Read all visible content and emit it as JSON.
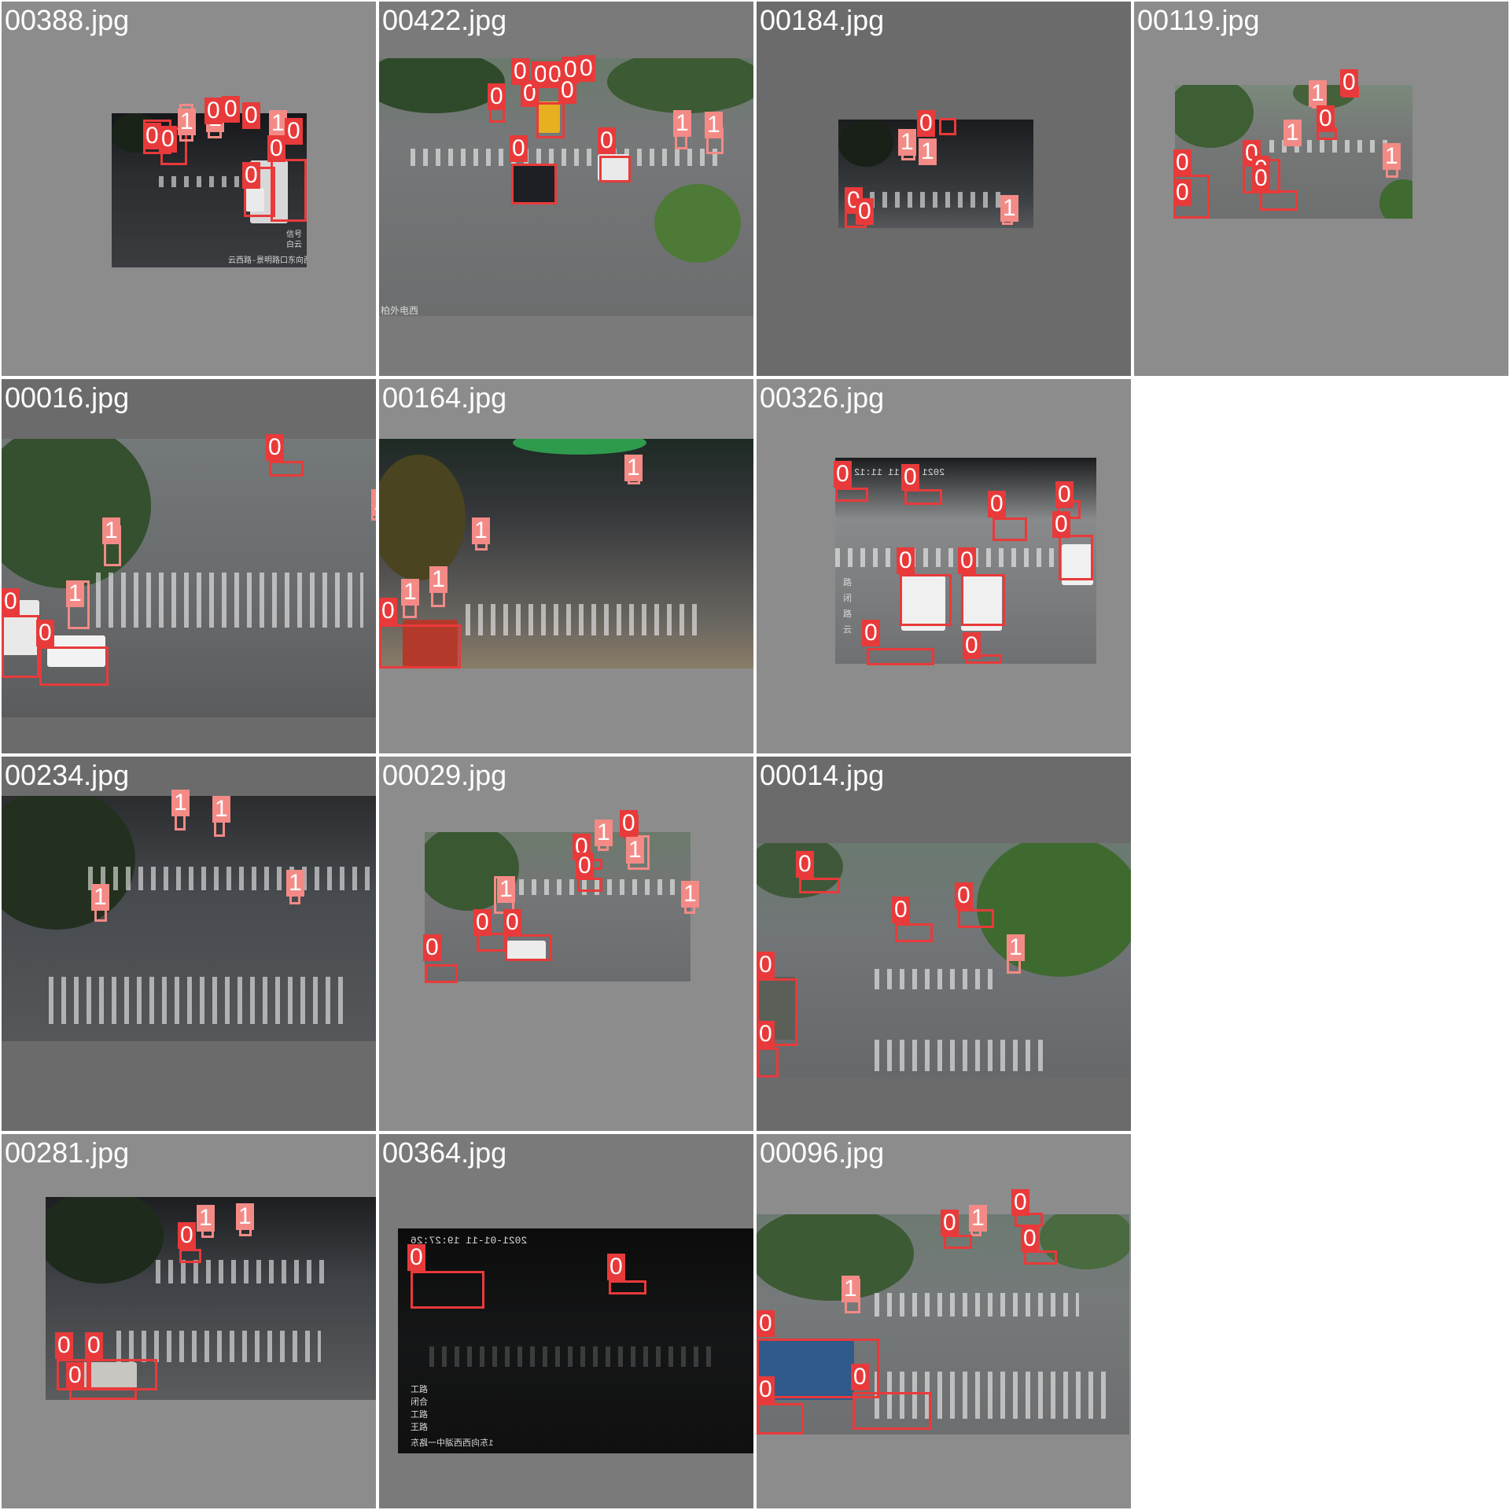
{
  "tiles": [
    {
      "filename": "00388.jpg",
      "tile_bg": "#8c8c8c",
      "scene": "night",
      "detections": [
        {
          "cls": "0"
        },
        {
          "cls": "0"
        },
        {
          "cls": "1"
        },
        {
          "cls": "1"
        },
        {
          "cls": "0"
        },
        {
          "cls": "0"
        },
        {
          "cls": "0"
        },
        {
          "cls": "1"
        },
        {
          "cls": "0"
        },
        {
          "cls": "0"
        },
        {
          "cls": "0"
        }
      ],
      "osd_bottom": "云西路-景明路口东向西3",
      "osd_side": [
        "信号",
        "白云"
      ]
    },
    {
      "filename": "00422.jpg",
      "tile_bg": "#7a7a7a",
      "scene": "day",
      "detections": [
        {
          "cls": "0"
        },
        {
          "cls": "0"
        },
        {
          "cls": "0"
        },
        {
          "cls": "0"
        },
        {
          "cls": "0"
        },
        {
          "cls": "0"
        },
        {
          "cls": "0"
        },
        {
          "cls": "0"
        },
        {
          "cls": "0"
        },
        {
          "cls": "1"
        },
        {
          "cls": "0"
        },
        {
          "cls": "1"
        }
      ],
      "osd_bottom": "柏外电西"
    },
    {
      "filename": "00184.jpg",
      "tile_bg": "#6b6b6b",
      "scene": "night",
      "detections": [
        {
          "cls": "0"
        },
        {
          "cls": "1"
        },
        {
          "cls": "1"
        },
        {
          "cls": "0"
        },
        {
          "cls": "0"
        },
        {
          "cls": "1"
        }
      ]
    },
    {
      "filename": "00119.jpg",
      "tile_bg": "#8c8c8c",
      "scene": "day",
      "detections": [
        {
          "cls": "1"
        },
        {
          "cls": "0"
        },
        {
          "cls": "0"
        },
        {
          "cls": "1"
        },
        {
          "cls": "0"
        },
        {
          "cls": "0"
        },
        {
          "cls": "0"
        },
        {
          "cls": "0"
        },
        {
          "cls": "0"
        },
        {
          "cls": "1"
        }
      ]
    },
    {
      "filename": "00016.jpg",
      "tile_bg": "#6b6b6b",
      "scene": "day",
      "detections": [
        {
          "cls": "0"
        },
        {
          "cls": "1"
        },
        {
          "cls": "1"
        },
        {
          "cls": "1"
        },
        {
          "cls": "0"
        },
        {
          "cls": "0"
        }
      ]
    },
    {
      "filename": "00164.jpg",
      "tile_bg": "#8c8c8c",
      "scene": "night",
      "detections": [
        {
          "cls": "1"
        },
        {
          "cls": "1"
        },
        {
          "cls": "1"
        },
        {
          "cls": "1"
        },
        {
          "cls": "0"
        }
      ]
    },
    {
      "filename": "00326.jpg",
      "tile_bg": "#8c8c8c",
      "scene": "day",
      "detections": [
        {
          "cls": "0"
        },
        {
          "cls": "0"
        },
        {
          "cls": "0"
        },
        {
          "cls": "0"
        },
        {
          "cls": "0"
        },
        {
          "cls": "0"
        },
        {
          "cls": "0"
        },
        {
          "cls": "0"
        },
        {
          "cls": "0"
        }
      ],
      "osd_top": "2021 08 11 11:12",
      "osd_side": [
        "路",
        "闭",
        "路",
        "云"
      ]
    },
    {
      "filename": "00234.jpg",
      "tile_bg": "#6b6b6b",
      "scene": "night",
      "detections": [
        {
          "cls": "1"
        },
        {
          "cls": "1"
        },
        {
          "cls": "1"
        },
        {
          "cls": "1"
        }
      ]
    },
    {
      "filename": "00029.jpg",
      "tile_bg": "#8c8c8c",
      "scene": "day",
      "detections": [
        {
          "cls": "0"
        },
        {
          "cls": "1"
        },
        {
          "cls": "0"
        },
        {
          "cls": "1"
        },
        {
          "cls": "0"
        },
        {
          "cls": "1"
        },
        {
          "cls": "1"
        },
        {
          "cls": "0"
        },
        {
          "cls": "0"
        },
        {
          "cls": "0"
        }
      ]
    },
    {
      "filename": "00014.jpg",
      "tile_bg": "#6b6b6b",
      "scene": "day",
      "detections": [
        {
          "cls": "0"
        },
        {
          "cls": "0"
        },
        {
          "cls": "0"
        },
        {
          "cls": "1"
        },
        {
          "cls": "0"
        },
        {
          "cls": "0"
        }
      ]
    },
    {
      "filename": "00281.jpg",
      "tile_bg": "#8c8c8c",
      "scene": "night",
      "detections": [
        {
          "cls": "1"
        },
        {
          "cls": "1"
        },
        {
          "cls": "0"
        },
        {
          "cls": "0"
        },
        {
          "cls": "0"
        },
        {
          "cls": "0"
        }
      ]
    },
    {
      "filename": "00364.jpg",
      "tile_bg": "#7a7a7a",
      "scene": "dark",
      "detections": [
        {
          "cls": "0"
        },
        {
          "cls": "0"
        }
      ],
      "osd_top": "2021-01-11 19:27:26",
      "osd_side": [
        "工路",
        "闭合",
        "工路",
        "王路"
      ],
      "osd_bottom": "1东向西西湖中一路东"
    },
    {
      "filename": "00096.jpg",
      "tile_bg": "#8c8c8c",
      "scene": "day",
      "detections": [
        {
          "cls": "1"
        },
        {
          "cls": "0"
        },
        {
          "cls": "0"
        },
        {
          "cls": "0"
        },
        {
          "cls": "1"
        },
        {
          "cls": "0"
        },
        {
          "cls": "0"
        },
        {
          "cls": "0"
        }
      ]
    }
  ],
  "colors": {
    "class0": "#e83a3a",
    "class1": "#f38a86",
    "label_text": "#ffffff"
  }
}
